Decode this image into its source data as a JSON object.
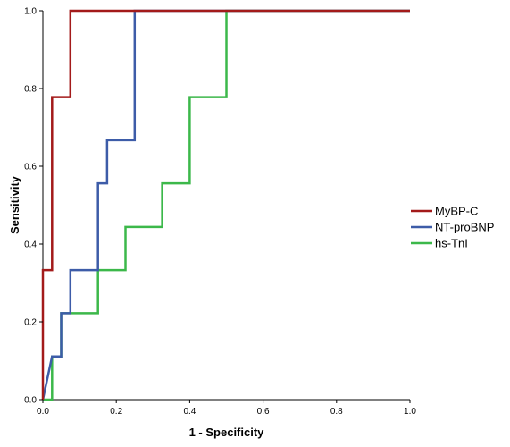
{
  "chart_data": {
    "type": "line",
    "title": "",
    "xlabel": "1 - Specificity",
    "ylabel": "Sensitivity",
    "xlim": [
      0,
      1
    ],
    "ylim": [
      0,
      1
    ],
    "xticks": [
      "0.0",
      "0.2",
      "0.4",
      "0.6",
      "0.8",
      "1.0"
    ],
    "yticks": [
      "0.0",
      "0.2",
      "0.4",
      "0.6",
      "0.8",
      "1.0"
    ],
    "grid": false,
    "legend_position": "right",
    "series": [
      {
        "name": "MyBP-C",
        "color": "#a31a1a",
        "points": [
          [
            0,
            0
          ],
          [
            0,
            0.333
          ],
          [
            0.025,
            0.333
          ],
          [
            0.025,
            0.778
          ],
          [
            0.075,
            0.778
          ],
          [
            0.075,
            1
          ],
          [
            1,
            1
          ]
        ]
      },
      {
        "name": "NT-proBNP",
        "color": "#3d5ca8",
        "points": [
          [
            0,
            0
          ],
          [
            0.025,
            0.111
          ],
          [
            0.05,
            0.111
          ],
          [
            0.05,
            0.222
          ],
          [
            0.075,
            0.222
          ],
          [
            0.075,
            0.333
          ],
          [
            0.15,
            0.333
          ],
          [
            0.15,
            0.556
          ],
          [
            0.175,
            0.556
          ],
          [
            0.175,
            0.667
          ],
          [
            0.25,
            0.667
          ],
          [
            0.25,
            1
          ],
          [
            1,
            1
          ]
        ]
      },
      {
        "name": "hs-TnI",
        "color": "#3cb84a",
        "points": [
          [
            0,
            0
          ],
          [
            0.025,
            0
          ],
          [
            0.025,
            0.111
          ],
          [
            0.05,
            0.111
          ],
          [
            0.05,
            0.222
          ],
          [
            0.15,
            0.222
          ],
          [
            0.15,
            0.333
          ],
          [
            0.225,
            0.333
          ],
          [
            0.225,
            0.444
          ],
          [
            0.325,
            0.444
          ],
          [
            0.325,
            0.556
          ],
          [
            0.4,
            0.556
          ],
          [
            0.4,
            0.778
          ],
          [
            0.5,
            0.778
          ],
          [
            0.5,
            1
          ],
          [
            1,
            1
          ]
        ]
      }
    ]
  }
}
